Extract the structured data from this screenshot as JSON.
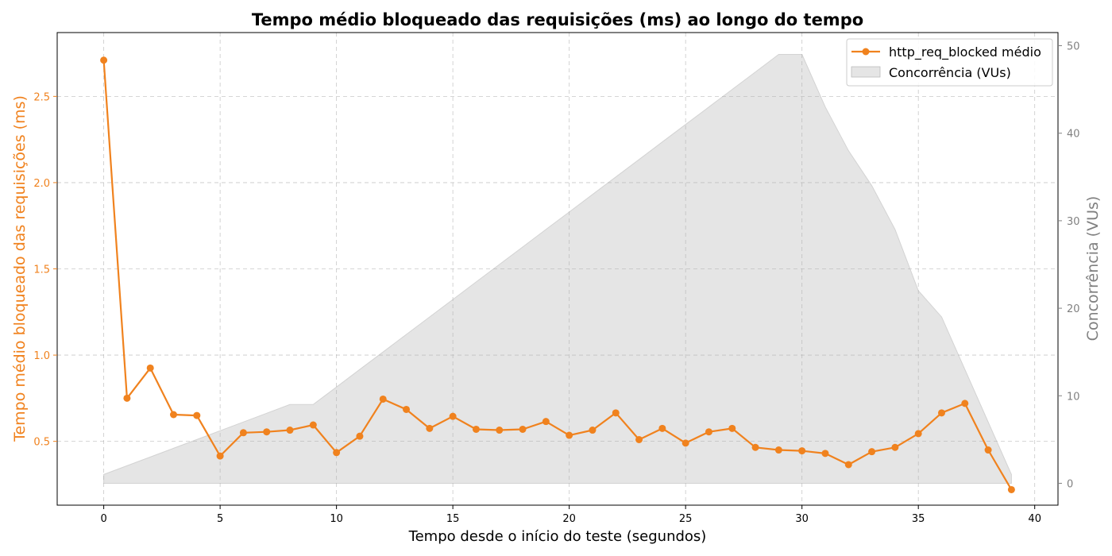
{
  "chart_data": {
    "type": "line",
    "title": "Tempo médio bloqueado das requisições (ms) ao longo do tempo",
    "xlabel": "Tempo desde o início do teste (segundos)",
    "ylabel": "Tempo médio bloqueado das requisições (ms)",
    "ylabel_right": "Concorrência (VUs)",
    "xlim": [
      -2,
      41
    ],
    "ylim": [
      0.13,
      2.87
    ],
    "ylim_right": [
      -2.5,
      51.5
    ],
    "xticks": [
      0,
      5,
      10,
      15,
      20,
      25,
      30,
      35,
      40
    ],
    "yticks": [
      0.5,
      1.0,
      1.5,
      2.0,
      2.5
    ],
    "yticks_right": [
      0,
      10,
      20,
      30,
      40,
      50
    ],
    "grid": true,
    "legend_position": "top-right",
    "series": [
      {
        "name": "http_req_blocked médio",
        "color": "#F0821E",
        "x": [
          0,
          1,
          2,
          3,
          4,
          5,
          6,
          7,
          8,
          9,
          10,
          11,
          12,
          13,
          14,
          15,
          16,
          17,
          18,
          19,
          20,
          21,
          22,
          23,
          24,
          25,
          26,
          27,
          28,
          29,
          30,
          31,
          32,
          33,
          34,
          35,
          36,
          37,
          38,
          39
        ],
        "values": [
          2.71,
          0.75,
          0.925,
          0.655,
          0.65,
          0.415,
          0.55,
          0.555,
          0.565,
          0.595,
          0.435,
          0.53,
          0.745,
          0.685,
          0.575,
          0.645,
          0.57,
          0.565,
          0.57,
          0.615,
          0.535,
          0.565,
          0.665,
          0.51,
          0.575,
          0.49,
          0.555,
          0.575,
          0.465,
          0.45,
          0.445,
          0.43,
          0.365,
          0.44,
          0.465,
          0.545,
          0.665,
          0.72,
          0.45,
          0.22
        ]
      },
      {
        "name": "Concorrência (VUs)",
        "type": "area",
        "axis": "right",
        "color": "#D3D3D3",
        "x": [
          0,
          1,
          2,
          3,
          4,
          5,
          6,
          7,
          8,
          9,
          10,
          11,
          12,
          13,
          14,
          15,
          16,
          17,
          18,
          19,
          20,
          21,
          22,
          23,
          24,
          25,
          26,
          27,
          28,
          29,
          30,
          31,
          32,
          33,
          34,
          35,
          36,
          37,
          38,
          39
        ],
        "values": [
          1,
          2,
          3,
          4,
          5,
          6,
          7,
          8,
          9,
          9,
          11,
          13,
          15,
          17,
          19,
          21,
          23,
          25,
          27,
          29,
          31,
          33,
          35,
          37,
          39,
          41,
          43,
          45,
          47,
          49,
          49,
          43,
          38,
          34,
          29,
          22,
          19,
          13,
          7,
          1
        ]
      }
    ]
  }
}
